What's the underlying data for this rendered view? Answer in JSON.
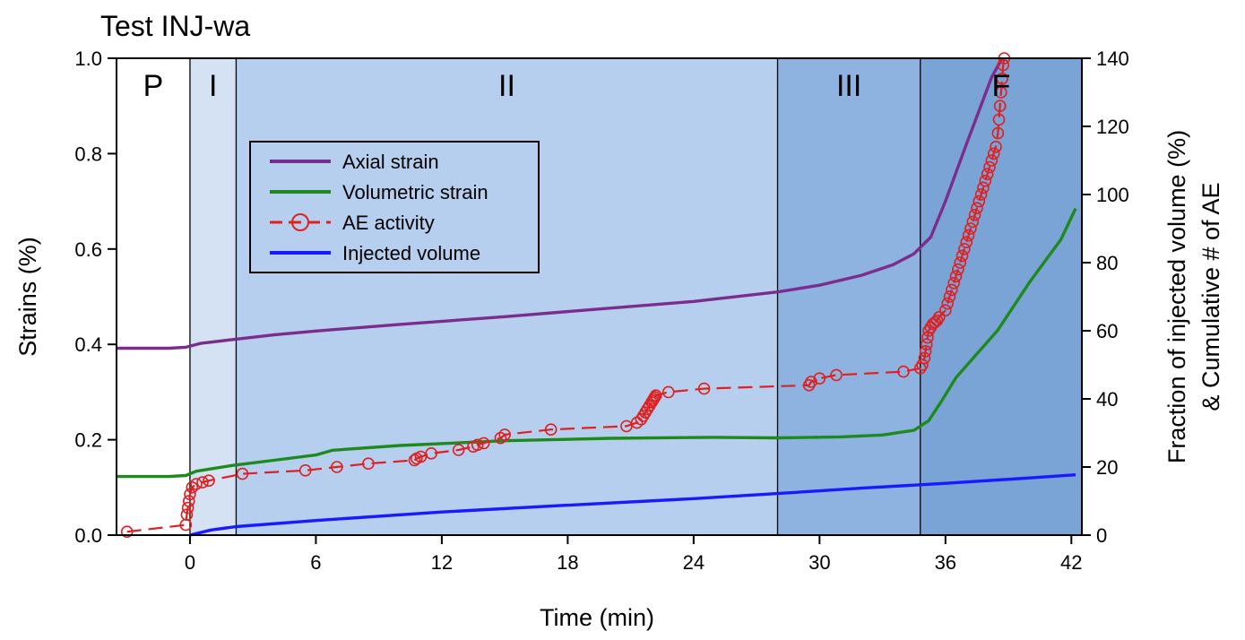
{
  "chart_data": {
    "type": "line",
    "title": "Test INJ-wa",
    "xlabel": "Time (min)",
    "ylabel": "Strains  (%)",
    "y2label_line1": "Fraction of injected volume (%)",
    "y2label_line2": "& Cumulative # of AE",
    "xlim": [
      -3.5,
      42.5
    ],
    "ylim": [
      0,
      1.0
    ],
    "y2lim": [
      0,
      140
    ],
    "x_ticks": [
      0,
      6,
      12,
      18,
      24,
      30,
      36,
      42
    ],
    "x_tick_labels": [
      "0",
      "6",
      "12",
      "18",
      "24",
      "30",
      "36",
      "42"
    ],
    "y_ticks": [
      0,
      0.2,
      0.4,
      0.6,
      0.8,
      1.0
    ],
    "y_tick_labels": [
      "0.0",
      "0.2",
      "0.4",
      "0.6",
      "0.8",
      "1.0"
    ],
    "y2_ticks": [
      0,
      20,
      40,
      60,
      80,
      100,
      120,
      140
    ],
    "y2_tick_labels": [
      "0",
      "20",
      "40",
      "60",
      "80",
      "100",
      "120",
      "140"
    ],
    "grid": false,
    "legend_position": "upper-left",
    "phases": [
      {
        "label": "P",
        "x_start": -3.5,
        "x_end": 0,
        "color": "#ffffff"
      },
      {
        "label": "I",
        "x_start": 0,
        "x_end": 2.2,
        "color": "#d4e2f3"
      },
      {
        "label": "II",
        "x_start": 2.2,
        "x_end": 28,
        "color": "#b6cfee"
      },
      {
        "label": "III",
        "x_start": 28,
        "x_end": 34.8,
        "color": "#8fb3e0"
      },
      {
        "label": "F",
        "x_start": 34.8,
        "x_end": 42.5,
        "color": "#7aa3d6"
      }
    ],
    "series": [
      {
        "name": "Axial strain",
        "axis": "left",
        "color": "#7b2d8e",
        "style": "solid",
        "x": [
          -3.5,
          -1,
          -0.2,
          0.5,
          2,
          4,
          6,
          10,
          15,
          20,
          24,
          28,
          30,
          32,
          33.5,
          34.5,
          35.3,
          36,
          37,
          38.2,
          38.7
        ],
        "y": [
          0.392,
          0.392,
          0.394,
          0.402,
          0.41,
          0.42,
          0.428,
          0.442,
          0.458,
          0.476,
          0.49,
          0.51,
          0.524,
          0.545,
          0.567,
          0.59,
          0.625,
          0.7,
          0.82,
          0.96,
          1.0
        ]
      },
      {
        "name": "Volumetric strain",
        "axis": "left",
        "color": "#1e8a1e",
        "style": "solid",
        "x": [
          -3.5,
          -1,
          -0.2,
          0.3,
          2,
          4,
          6,
          6.8,
          10,
          15,
          20,
          25,
          28,
          31,
          33,
          34.5,
          35.2,
          35.8,
          36.5,
          37.5,
          38.5,
          40,
          41.5,
          42.2
        ],
        "y": [
          0.123,
          0.123,
          0.125,
          0.134,
          0.146,
          0.157,
          0.168,
          0.178,
          0.188,
          0.198,
          0.203,
          0.205,
          0.204,
          0.206,
          0.21,
          0.22,
          0.24,
          0.28,
          0.33,
          0.38,
          0.43,
          0.53,
          0.62,
          0.685
        ]
      },
      {
        "name": "AE activity",
        "axis": "right",
        "color": "#e02020",
        "style": "dashed-circle",
        "x": [
          -3,
          -0.2,
          -0.15,
          -0.1,
          -0.05,
          0,
          0.1,
          0.3,
          0.6,
          0.9,
          2.5,
          5.5,
          7,
          8.5,
          10.7,
          10.8,
          11,
          11.5,
          12.8,
          13.5,
          13.7,
          14,
          14.8,
          15,
          17.2,
          20.8,
          21.3,
          21.5,
          21.6,
          21.7,
          21.8,
          21.9,
          22,
          22.05,
          22.1,
          22.15,
          22.2,
          22.8,
          24.5,
          29.5,
          29.6,
          30,
          30.8,
          34,
          34.8,
          34.9,
          35,
          35.05,
          35.1,
          35.15,
          35.2,
          35.3,
          35.4,
          35.5,
          35.6,
          35.7,
          36,
          36.1,
          36.2,
          36.3,
          36.4,
          36.5,
          36.6,
          36.7,
          36.8,
          36.9,
          37,
          37.1,
          37.2,
          37.3,
          37.4,
          37.5,
          37.6,
          37.7,
          37.8,
          37.9,
          38,
          38.1,
          38.2,
          38.3,
          38.4,
          38.5,
          38.55,
          38.6,
          38.65,
          38.7,
          38.75,
          38.8
        ],
        "y": [
          1,
          3,
          6,
          8,
          10,
          12,
          14,
          15,
          15.5,
          16,
          18,
          19,
          20,
          21,
          22,
          22.5,
          23,
          24,
          25,
          26,
          26.5,
          27,
          28.5,
          29.5,
          31,
          32,
          33,
          34,
          35,
          36,
          37,
          38,
          39,
          39.5,
          40,
          40.5,
          41,
          42,
          43,
          44,
          45,
          46,
          47,
          48,
          49,
          50,
          52,
          54,
          56,
          58,
          60,
          61,
          62,
          62.5,
          63,
          64,
          66,
          68,
          70,
          72,
          74,
          76,
          78,
          80,
          82,
          84,
          86,
          88,
          90,
          92,
          94,
          96,
          98,
          100,
          102,
          104,
          106,
          108,
          110,
          112,
          114,
          118,
          122,
          126,
          130,
          134,
          138,
          140
        ]
      },
      {
        "name": "Injected volume",
        "axis": "right",
        "color": "#1a1aff",
        "style": "solid",
        "x": [
          0,
          1,
          2.2,
          6,
          12,
          18,
          24,
          28,
          32,
          36,
          40,
          42.2
        ],
        "y": [
          0,
          1.5,
          2.5,
          4.3,
          6.8,
          8.8,
          10.7,
          12.2,
          13.8,
          15.2,
          16.8,
          17.7
        ]
      }
    ]
  }
}
